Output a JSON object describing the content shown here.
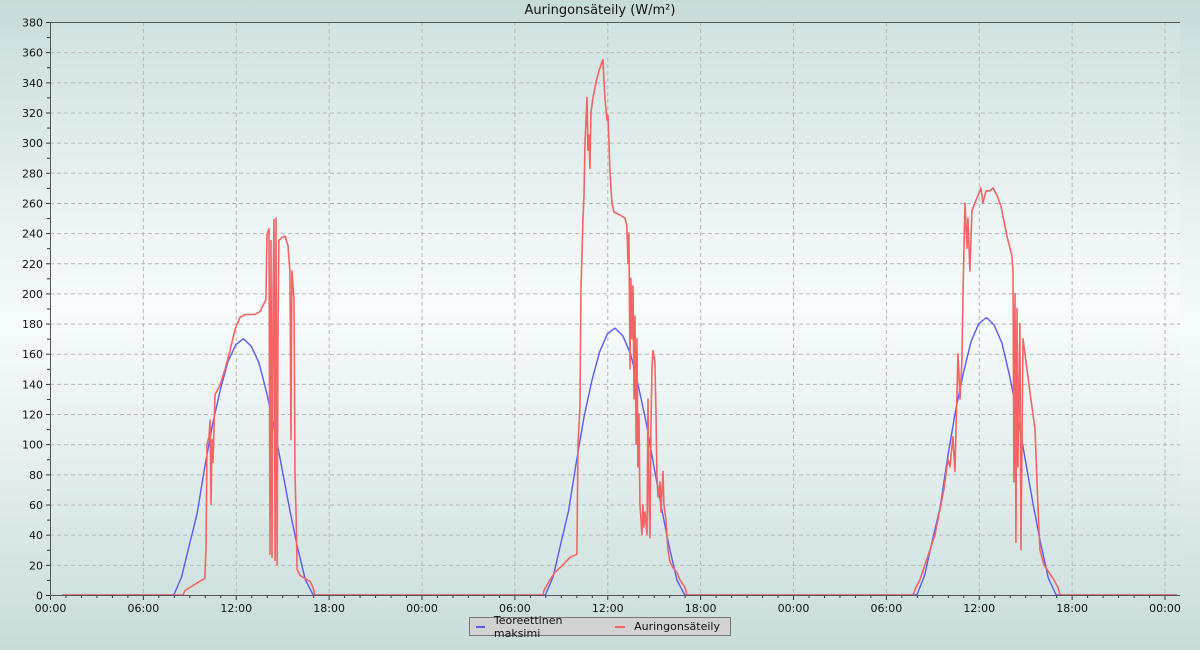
{
  "chart_data": {
    "type": "line",
    "title": "Auringonsäteily (W/m²)",
    "xlabel": "",
    "ylabel": "",
    "xlim": [
      0,
      73
    ],
    "ylim": [
      0,
      380
    ],
    "grid": true,
    "legend_position": "bottom-center",
    "y_ticks": [
      0,
      20,
      40,
      60,
      80,
      100,
      120,
      140,
      160,
      180,
      200,
      220,
      240,
      260,
      280,
      300,
      320,
      340,
      360,
      380
    ],
    "x_ticks": [
      {
        "h": 0,
        "label": "00:00"
      },
      {
        "h": 6,
        "label": "06:00"
      },
      {
        "h": 12,
        "label": "12:00"
      },
      {
        "h": 18,
        "label": "18:00"
      },
      {
        "h": 24,
        "label": "00:00"
      },
      {
        "h": 30,
        "label": "06:00"
      },
      {
        "h": 36,
        "label": "12:00"
      },
      {
        "h": 42,
        "label": "18:00"
      },
      {
        "h": 48,
        "label": "00:00"
      },
      {
        "h": 54,
        "label": "06:00"
      },
      {
        "h": 60,
        "label": "12:00"
      },
      {
        "h": 66,
        "label": "18:00"
      },
      {
        "h": 72,
        "label": "00:00"
      }
    ],
    "x_units": "hours since first 00:00",
    "series": [
      {
        "name": "Teoreettinen maksimi",
        "color": "#5a5af5",
        "points": [
          [
            0.8,
            0
          ],
          [
            8,
            0
          ],
          [
            8.5,
            12
          ],
          [
            9,
            33
          ],
          [
            9.5,
            54
          ],
          [
            10,
            85
          ],
          [
            10.5,
            113
          ],
          [
            11,
            136
          ],
          [
            11.5,
            155
          ],
          [
            12,
            166
          ],
          [
            12.5,
            170
          ],
          [
            13,
            165
          ],
          [
            13.5,
            154
          ],
          [
            14,
            134
          ],
          [
            14.5,
            110
          ],
          [
            15,
            83
          ],
          [
            15.5,
            56
          ],
          [
            16,
            31
          ],
          [
            16.5,
            10
          ],
          [
            17,
            0
          ],
          [
            32,
            0
          ],
          [
            32.5,
            12
          ],
          [
            33,
            34
          ],
          [
            33.5,
            56
          ],
          [
            34,
            88
          ],
          [
            34.5,
            118
          ],
          [
            35,
            142
          ],
          [
            35.5,
            161
          ],
          [
            36,
            173
          ],
          [
            36.5,
            177
          ],
          [
            37,
            172
          ],
          [
            37.5,
            160
          ],
          [
            38,
            139
          ],
          [
            38.5,
            115
          ],
          [
            39,
            86
          ],
          [
            39.5,
            58
          ],
          [
            40,
            32
          ],
          [
            40.5,
            10
          ],
          [
            41,
            0
          ],
          [
            56,
            0
          ],
          [
            56.5,
            13
          ],
          [
            57,
            36
          ],
          [
            57.5,
            58
          ],
          [
            58,
            92
          ],
          [
            58.5,
            122
          ],
          [
            59,
            147
          ],
          [
            59.5,
            168
          ],
          [
            60,
            180
          ],
          [
            60.5,
            184
          ],
          [
            61,
            179
          ],
          [
            61.5,
            167
          ],
          [
            62,
            145
          ],
          [
            62.5,
            119
          ],
          [
            63,
            90
          ],
          [
            63.5,
            61
          ],
          [
            64,
            34
          ],
          [
            64.5,
            11
          ],
          [
            65,
            0
          ],
          [
            72.8,
            0
          ]
        ]
      },
      {
        "name": "Auringonsäteily",
        "color": "#f46464",
        "points": [
          [
            0.8,
            0
          ],
          [
            8.6,
            0
          ],
          [
            8.72,
            3
          ],
          [
            9.04,
            5
          ],
          [
            9.5,
            8
          ],
          [
            10.0,
            11
          ],
          [
            10.08,
            31
          ],
          [
            10.14,
            100
          ],
          [
            10.27,
            105
          ],
          [
            10.34,
            116
          ],
          [
            10.4,
            60
          ],
          [
            10.47,
            103
          ],
          [
            10.53,
            88
          ],
          [
            10.66,
            133
          ],
          [
            10.98,
            139
          ],
          [
            11.31,
            150
          ],
          [
            11.63,
            162
          ],
          [
            11.95,
            176
          ],
          [
            12.27,
            184
          ],
          [
            12.6,
            186
          ],
          [
            12.92,
            186
          ],
          [
            13.24,
            186
          ],
          [
            13.57,
            188
          ],
          [
            13.95,
            196
          ],
          [
            14.02,
            239
          ],
          [
            14.15,
            243
          ],
          [
            14.21,
            27
          ],
          [
            14.28,
            235
          ],
          [
            14.34,
            25
          ],
          [
            14.41,
            202
          ],
          [
            14.47,
            249
          ],
          [
            14.54,
            23
          ],
          [
            14.6,
            250
          ],
          [
            14.67,
            20
          ],
          [
            14.73,
            175
          ],
          [
            14.79,
            235
          ],
          [
            14.99,
            237
          ],
          [
            15.18,
            238
          ],
          [
            15.37,
            232
          ],
          [
            15.5,
            215
          ],
          [
            15.57,
            103
          ],
          [
            15.63,
            215
          ],
          [
            15.76,
            196
          ],
          [
            15.83,
            80
          ],
          [
            15.89,
            56
          ],
          [
            15.96,
            17
          ],
          [
            16.15,
            13
          ],
          [
            16.47,
            11
          ],
          [
            16.8,
            9
          ],
          [
            16.99,
            5
          ],
          [
            17.12,
            0
          ],
          [
            31.85,
            0
          ],
          [
            31.91,
            3
          ],
          [
            32.3,
            10
          ],
          [
            32.62,
            15
          ],
          [
            33.14,
            20
          ],
          [
            33.59,
            25
          ],
          [
            34.04,
            27
          ],
          [
            34.11,
            100
          ],
          [
            34.24,
            125
          ],
          [
            34.3,
            200
          ],
          [
            34.43,
            250
          ],
          [
            34.5,
            265
          ],
          [
            34.56,
            300
          ],
          [
            34.69,
            330
          ],
          [
            34.75,
            295
          ],
          [
            34.82,
            305
          ],
          [
            34.88,
            283
          ],
          [
            34.95,
            320
          ],
          [
            35.08,
            330
          ],
          [
            35.27,
            340
          ],
          [
            35.47,
            348
          ],
          [
            35.72,
            355
          ],
          [
            35.85,
            330
          ],
          [
            35.98,
            315
          ],
          [
            36.05,
            318
          ],
          [
            36.18,
            280
          ],
          [
            36.3,
            260
          ],
          [
            36.43,
            254
          ],
          [
            36.82,
            252
          ],
          [
            37.14,
            250
          ],
          [
            37.27,
            245
          ],
          [
            37.34,
            220
          ],
          [
            37.4,
            240
          ],
          [
            37.47,
            150
          ],
          [
            37.53,
            210
          ],
          [
            37.6,
            170
          ],
          [
            37.66,
            205
          ],
          [
            37.73,
            130
          ],
          [
            37.79,
            185
          ],
          [
            37.86,
            100
          ],
          [
            37.92,
            170
          ],
          [
            37.98,
            85
          ],
          [
            38.05,
            120
          ],
          [
            38.11,
            60
          ],
          [
            38.18,
            50
          ],
          [
            38.24,
            40
          ],
          [
            38.31,
            60
          ],
          [
            38.37,
            45
          ],
          [
            38.44,
            55
          ],
          [
            38.57,
            40
          ],
          [
            38.63,
            130
          ],
          [
            38.7,
            60
          ],
          [
            38.76,
            38
          ],
          [
            38.82,
            110
          ],
          [
            38.89,
            150
          ],
          [
            38.95,
            162
          ],
          [
            39.08,
            155
          ],
          [
            39.15,
            120
          ],
          [
            39.21,
            80
          ],
          [
            39.28,
            65
          ],
          [
            39.41,
            75
          ],
          [
            39.47,
            55
          ],
          [
            39.6,
            82
          ],
          [
            39.66,
            60
          ],
          [
            39.79,
            50
          ],
          [
            39.92,
            30
          ],
          [
            40.05,
            22
          ],
          [
            40.25,
            18
          ],
          [
            40.5,
            15
          ],
          [
            40.7,
            10
          ],
          [
            41.02,
            5
          ],
          [
            41.15,
            0
          ],
          [
            55.75,
            0
          ],
          [
            55.94,
            5
          ],
          [
            56.2,
            10
          ],
          [
            56.52,
            20
          ],
          [
            56.85,
            30
          ],
          [
            57.17,
            40
          ],
          [
            57.36,
            50
          ],
          [
            57.56,
            60
          ],
          [
            57.75,
            70
          ],
          [
            58.01,
            90
          ],
          [
            58.14,
            85
          ],
          [
            58.33,
            105
          ],
          [
            58.46,
            82
          ],
          [
            58.66,
            160
          ],
          [
            58.79,
            130
          ],
          [
            58.91,
            155
          ],
          [
            58.98,
            200
          ],
          [
            59.11,
            260
          ],
          [
            59.24,
            230
          ],
          [
            59.3,
            250
          ],
          [
            59.43,
            215
          ],
          [
            59.56,
            255
          ],
          [
            59.75,
            260
          ],
          [
            59.95,
            265
          ],
          [
            60.14,
            270
          ],
          [
            60.27,
            260
          ],
          [
            60.47,
            268
          ],
          [
            60.72,
            268
          ],
          [
            60.92,
            270
          ],
          [
            61.18,
            265
          ],
          [
            61.43,
            258
          ],
          [
            61.63,
            248
          ],
          [
            61.82,
            238
          ],
          [
            62.14,
            225
          ],
          [
            62.21,
            215
          ],
          [
            62.27,
            75
          ],
          [
            62.34,
            200
          ],
          [
            62.4,
            35
          ],
          [
            62.47,
            190
          ],
          [
            62.53,
            85
          ],
          [
            62.66,
            180
          ],
          [
            62.73,
            30
          ],
          [
            62.86,
            170
          ],
          [
            63.11,
            150
          ],
          [
            63.37,
            130
          ],
          [
            63.63,
            110
          ],
          [
            63.82,
            60
          ],
          [
            63.95,
            30
          ],
          [
            64.21,
            20
          ],
          [
            64.54,
            15
          ],
          [
            64.86,
            10
          ],
          [
            65.12,
            5
          ],
          [
            65.25,
            0
          ],
          [
            72.8,
            0
          ]
        ]
      }
    ]
  }
}
